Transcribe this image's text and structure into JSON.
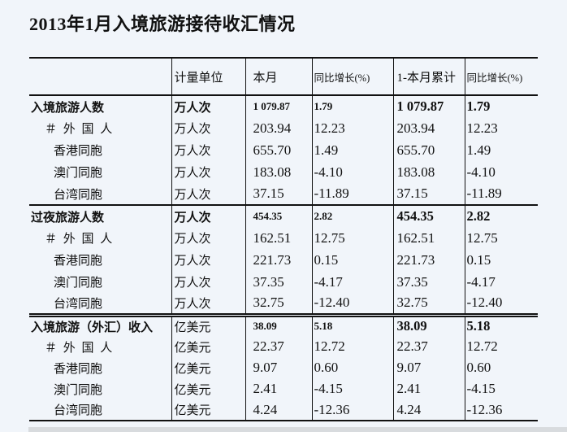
{
  "page": {
    "title": "2013年1月入境旅游接待收汇情况",
    "colors": {
      "page_bg": "#f1f5fa",
      "line": "#111111",
      "text": "#111111"
    }
  },
  "table": {
    "headers": [
      "",
      "计量单位",
      "本月",
      "同比增长(%)",
      "1-本月累计",
      "同比增长(%)"
    ],
    "sections": [
      {
        "rows": [
          {
            "label": "入境旅游人数",
            "indent": 0,
            "bold": true,
            "unit": "万人次",
            "unit_bold": true,
            "month": "1 079.87",
            "yoy": "1.79",
            "cumulative": "1 079.87",
            "cumulative_yoy": "1.79"
          },
          {
            "label": "＃ 外 国 人",
            "indent": 1,
            "bold": false,
            "unit": "万人次",
            "unit_bold": false,
            "month": "203.94",
            "yoy": "12.23",
            "cumulative": "203.94",
            "cumulative_yoy": "12.23"
          },
          {
            "label": "香港同胞",
            "indent": 2,
            "bold": false,
            "unit": "万人次",
            "unit_bold": false,
            "month": "655.70",
            "yoy": "1.49",
            "cumulative": "655.70",
            "cumulative_yoy": "1.49"
          },
          {
            "label": "澳门同胞",
            "indent": 2,
            "bold": false,
            "unit": "万人次",
            "unit_bold": false,
            "month": "183.08",
            "yoy": "-4.10",
            "cumulative": "183.08",
            "cumulative_yoy": "-4.10"
          },
          {
            "label": "台湾同胞",
            "indent": 2,
            "bold": false,
            "unit": "万人次",
            "unit_bold": false,
            "month": "37.15",
            "yoy": "-11.89",
            "cumulative": "37.15",
            "cumulative_yoy": "-11.89"
          }
        ]
      },
      {
        "rows": [
          {
            "label": "过夜旅游人数",
            "indent": 0,
            "bold": true,
            "unit": "万人次",
            "unit_bold": true,
            "month": "454.35",
            "yoy": "2.82",
            "cumulative": "454.35",
            "cumulative_yoy": "2.82"
          },
          {
            "label": "＃ 外 国 人",
            "indent": 1,
            "bold": false,
            "unit": "万人次",
            "unit_bold": false,
            "month": "162.51",
            "yoy": "12.75",
            "cumulative": "162.51",
            "cumulative_yoy": "12.75"
          },
          {
            "label": "香港同胞",
            "indent": 2,
            "bold": false,
            "unit": "万人次",
            "unit_bold": false,
            "month": "221.73",
            "yoy": "0.15",
            "cumulative": "221.73",
            "cumulative_yoy": "0.15"
          },
          {
            "label": "澳门同胞",
            "indent": 2,
            "bold": false,
            "unit": "万人次",
            "unit_bold": false,
            "month": "37.35",
            "yoy": "-4.17",
            "cumulative": "37.35",
            "cumulative_yoy": "-4.17"
          },
          {
            "label": "台湾同胞",
            "indent": 2,
            "bold": false,
            "unit": "万人次",
            "unit_bold": false,
            "month": "32.75",
            "yoy": "-12.40",
            "cumulative": "32.75",
            "cumulative_yoy": "-12.40"
          }
        ]
      },
      {
        "rows": [
          {
            "label": "入境旅游（外汇）收入",
            "indent": 0,
            "bold": true,
            "unit": "亿美元",
            "unit_bold": false,
            "month": "38.09",
            "yoy": "5.18",
            "cumulative": "38.09",
            "cumulative_yoy": "5.18"
          },
          {
            "label": "＃ 外 国 人",
            "indent": 1,
            "bold": false,
            "unit": "亿美元",
            "unit_bold": false,
            "month": "22.37",
            "yoy": "12.72",
            "cumulative": "22.37",
            "cumulative_yoy": "12.72"
          },
          {
            "label": "香港同胞",
            "indent": 2,
            "bold": false,
            "unit": "亿美元",
            "unit_bold": false,
            "month": "9.07",
            "yoy": "0.60",
            "cumulative": "9.07",
            "cumulative_yoy": "0.60"
          },
          {
            "label": "澳门同胞",
            "indent": 2,
            "bold": false,
            "unit": "亿美元",
            "unit_bold": false,
            "month": "2.41",
            "yoy": "-4.15",
            "cumulative": "2.41",
            "cumulative_yoy": "-4.15"
          },
          {
            "label": "台湾同胞",
            "indent": 2,
            "bold": false,
            "unit": "亿美元",
            "unit_bold": false,
            "month": "4.24",
            "yoy": "-12.36",
            "cumulative": "4.24",
            "cumulative_yoy": "-12.36"
          }
        ]
      }
    ]
  }
}
